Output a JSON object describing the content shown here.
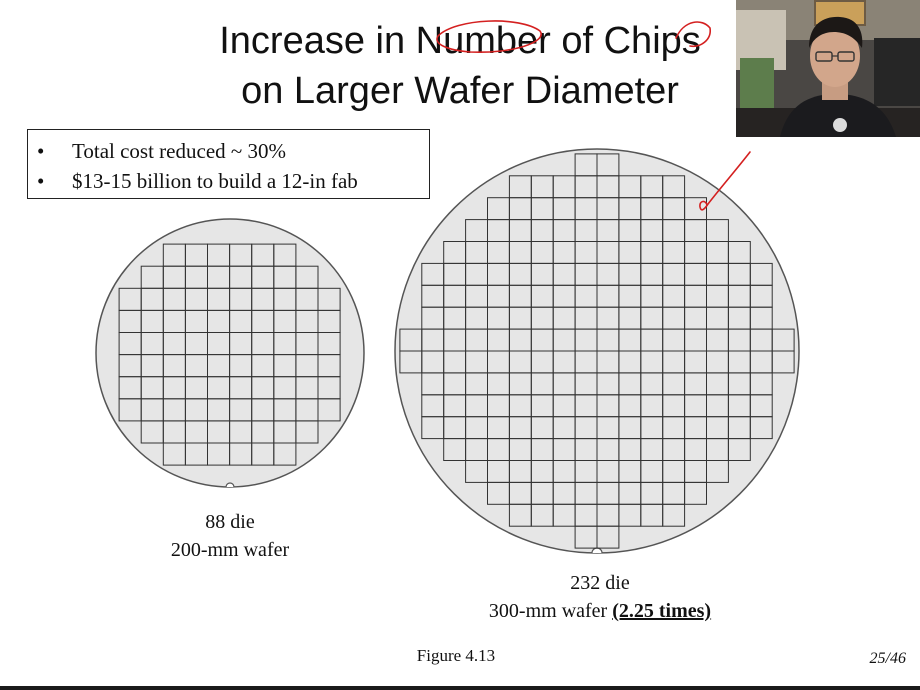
{
  "slide": {
    "title_line1": "Increase in Number of Chips",
    "title_line2": "on Larger Wafer Diameter",
    "bullets": [
      "Total cost reduced ~ 30%",
      "$13-15 billion to build a 12-in fab"
    ],
    "bullet_marker": "•",
    "wafer_small": {
      "line1": "88 die",
      "line2": "200-mm wafer"
    },
    "wafer_large": {
      "line1": "232 die",
      "line2_prefix": "300-mm wafer ",
      "line2_emph": "(2.25 times)"
    },
    "figure_caption": "Figure 4.13",
    "page_number": "25/46"
  },
  "colors": {
    "wafer_fill": "#e6e6e6",
    "grid_line": "#333333",
    "annotation_red": "#d42020"
  }
}
